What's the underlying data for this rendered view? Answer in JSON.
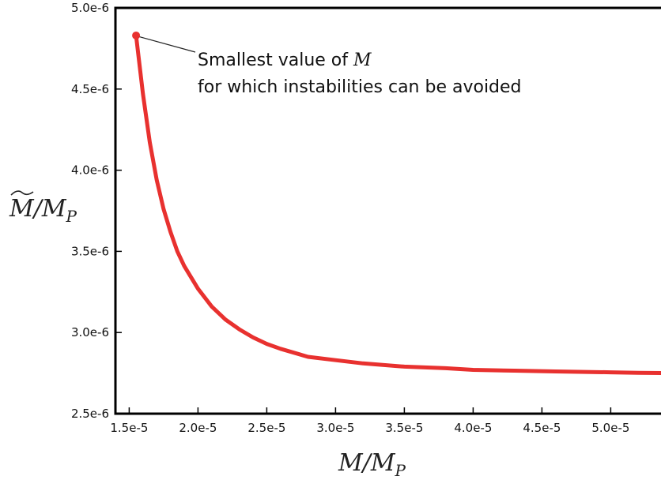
{
  "chart_data": {
    "type": "line",
    "xlabel_main": "M/M",
    "xlabel_sub": "P",
    "ylabel_main": "M/M",
    "ylabel_sub": "P",
    "ylabel_has_tilde": true,
    "xlim": [
      1.4e-05,
      5.4e-05
    ],
    "ylim": [
      2.5e-06,
      5e-06
    ],
    "x_tick_values": [
      1.5e-05,
      2e-05,
      2.5e-05,
      3e-05,
      3.5e-05,
      4e-05,
      4.5e-05,
      5e-05
    ],
    "x_tick_labels": [
      "1.5e-5",
      "2.0e-5",
      "2.5e-5",
      "3.0e-5",
      "3.5e-5",
      "4.0e-5",
      "4.5e-5",
      "5.0e-5"
    ],
    "y_tick_values": [
      2.5e-06,
      3e-06,
      3.5e-06,
      4e-06,
      4.5e-06,
      5e-06
    ],
    "y_tick_labels": [
      "2.5e-6",
      "3.0e-6",
      "3.5e-6",
      "4.0e-6",
      "4.5e-6",
      "5.0e-6"
    ],
    "grid": false,
    "series": [
      {
        "color": "#e8312f",
        "x": [
          1.55e-05,
          1.6e-05,
          1.65e-05,
          1.7e-05,
          1.75e-05,
          1.8e-05,
          1.85e-05,
          1.9e-05,
          1.95e-05,
          2e-05,
          2.1e-05,
          2.2e-05,
          2.3e-05,
          2.4e-05,
          2.5e-05,
          2.6e-05,
          2.8e-05,
          3e-05,
          3.2e-05,
          3.5e-05,
          3.8e-05,
          4e-05,
          4.3e-05,
          4.6e-05,
          5e-05,
          5.2e-05,
          5.4e-05
        ],
        "y": [
          4.83e-06,
          4.47e-06,
          4.17e-06,
          3.94e-06,
          3.76e-06,
          3.62e-06,
          3.5e-06,
          3.41e-06,
          3.34e-06,
          3.27e-06,
          3.16e-06,
          3.08e-06,
          3.02e-06,
          2.97e-06,
          2.93e-06,
          2.9e-06,
          2.85e-06,
          2.83e-06,
          2.81e-06,
          2.79e-06,
          2.78e-06,
          2.77e-06,
          2.765e-06,
          2.76e-06,
          2.755e-06,
          2.752e-06,
          2.75e-06
        ]
      }
    ],
    "marker": {
      "x": 1.55e-05,
      "y": 4.83e-06,
      "color": "#e8312f"
    },
    "annotation": {
      "line1_text": "Smallest value of ",
      "line1_var": "M",
      "line2_text": "for which instabilities can be avoided"
    }
  }
}
